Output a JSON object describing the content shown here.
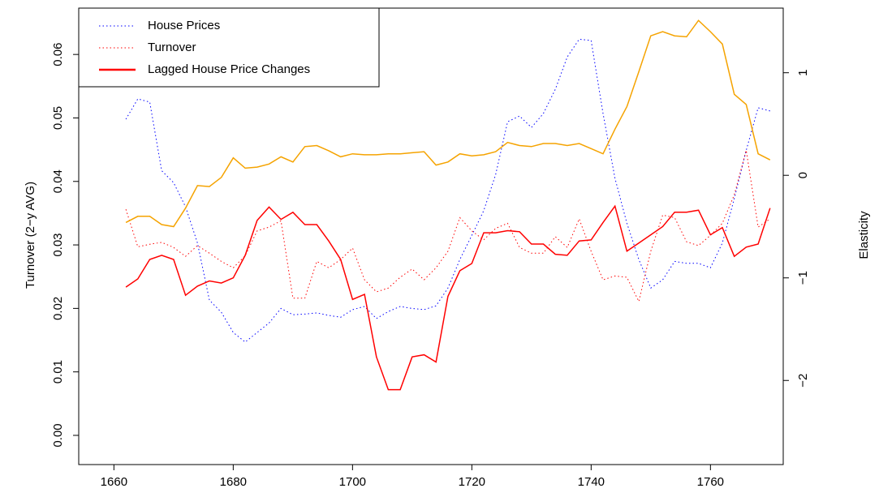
{
  "chart_data": {
    "type": "line",
    "x": [
      1662,
      1664,
      1666,
      1668,
      1670,
      1672,
      1674,
      1676,
      1678,
      1680,
      1682,
      1684,
      1686,
      1688,
      1690,
      1692,
      1694,
      1696,
      1698,
      1700,
      1702,
      1704,
      1706,
      1708,
      1710,
      1712,
      1714,
      1716,
      1718,
      1720,
      1722,
      1724,
      1726,
      1728,
      1730,
      1732,
      1734,
      1736,
      1738,
      1740,
      1742,
      1744,
      1746,
      1748,
      1750,
      1752,
      1754,
      1756,
      1758,
      1760,
      1762,
      1764,
      1766,
      1768,
      1770
    ],
    "series": [
      {
        "name": "House Prices",
        "color": "#0000ff",
        "dash": "dotted",
        "width": 1,
        "axis": "y",
        "values": [
          0.0498,
          0.053,
          0.0525,
          0.0417,
          0.0398,
          0.036,
          0.0303,
          0.0213,
          0.0194,
          0.0162,
          0.0147,
          0.0162,
          0.0177,
          0.02,
          0.019,
          0.0191,
          0.0193,
          0.0189,
          0.0186,
          0.0198,
          0.0203,
          0.0184,
          0.0195,
          0.0203,
          0.02,
          0.0198,
          0.0204,
          0.0232,
          0.0277,
          0.0315,
          0.0354,
          0.0411,
          0.0494,
          0.0503,
          0.0485,
          0.0507,
          0.0545,
          0.0596,
          0.0624,
          0.0622,
          0.0507,
          0.0405,
          0.0334,
          0.0277,
          0.0232,
          0.0245,
          0.0274,
          0.0271,
          0.0271,
          0.0264,
          0.0303,
          0.0373,
          0.0449,
          0.0516,
          0.0511
        ]
      },
      {
        "name": "Turnover",
        "color": "#ff0000",
        "dash": "dotted",
        "width": 1,
        "axis": "y",
        "values": [
          0.0356,
          0.0297,
          0.0301,
          0.0304,
          0.0296,
          0.0282,
          0.0299,
          0.0287,
          0.0274,
          0.0264,
          0.0283,
          0.0322,
          0.0328,
          0.0338,
          0.0216,
          0.0216,
          0.0274,
          0.0264,
          0.0277,
          0.0295,
          0.0245,
          0.0226,
          0.0232,
          0.0249,
          0.0262,
          0.0245,
          0.0264,
          0.029,
          0.0343,
          0.0322,
          0.0308,
          0.0326,
          0.0334,
          0.0296,
          0.0287,
          0.0287,
          0.0313,
          0.0296,
          0.0341,
          0.029,
          0.0245,
          0.0251,
          0.0249,
          0.0211,
          0.029,
          0.0347,
          0.0343,
          0.0305,
          0.0299,
          0.0315,
          0.0334,
          0.0379,
          0.0449,
          0.0328,
          0.0341
        ]
      },
      {
        "name": "Lagged House Price Changes",
        "color": "#ff0000",
        "dash": "solid",
        "width": 1.5,
        "axis": "y2",
        "values": [
          -1.09,
          -1.01,
          -0.82,
          -0.78,
          -0.82,
          -1.17,
          -1.08,
          -1.03,
          -1.05,
          -1.0,
          -0.78,
          -0.44,
          -0.31,
          -0.43,
          -0.36,
          -0.48,
          -0.48,
          -0.64,
          -0.82,
          -1.21,
          -1.16,
          -1.77,
          -2.09,
          -2.09,
          -1.77,
          -1.75,
          -1.82,
          -1.18,
          -0.93,
          -0.86,
          -0.56,
          -0.56,
          -0.54,
          -0.55,
          -0.67,
          -0.67,
          -0.77,
          -0.78,
          -0.64,
          -0.63,
          -0.46,
          -0.3,
          -0.74,
          -0.66,
          -0.58,
          -0.5,
          -0.36,
          -0.36,
          -0.34,
          -0.58,
          -0.51,
          -0.79,
          -0.7,
          -0.67,
          -0.32
        ]
      },
      {
        "color": "#f5a300",
        "dash": "solid",
        "width": 1.5,
        "axis": "y2",
        "values": [
          -0.46,
          -0.4,
          -0.4,
          -0.48,
          -0.5,
          -0.32,
          -0.1,
          -0.11,
          -0.02,
          0.17,
          0.07,
          0.08,
          0.11,
          0.18,
          0.13,
          0.28,
          0.29,
          0.24,
          0.18,
          0.21,
          0.2,
          0.2,
          0.21,
          0.21,
          0.22,
          0.23,
          0.1,
          0.13,
          0.21,
          0.19,
          0.2,
          0.23,
          0.32,
          0.29,
          0.28,
          0.31,
          0.31,
          0.29,
          0.31,
          0.26,
          0.21,
          0.45,
          0.67,
          1.01,
          1.36,
          1.4,
          1.36,
          1.35,
          1.51,
          1.4,
          1.28,
          0.79,
          0.69,
          0.21,
          0.15
        ]
      }
    ],
    "ylabel": "Turnover (2−y AVG)",
    "y2label": "Elasticity",
    "xlim": [
      1654.1,
      1772.2
    ],
    "xticks": [
      1660,
      1680,
      1700,
      1720,
      1740,
      1760
    ],
    "ylim": [
      -0.0046,
      0.0673
    ],
    "yticks": [
      {
        "value": 0,
        "label": "0.00"
      },
      {
        "value": 0.01,
        "label": "0.01"
      },
      {
        "value": 0.02,
        "label": "0.02"
      },
      {
        "value": 0.03,
        "label": "0.03"
      },
      {
        "value": 0.04,
        "label": "0.04"
      },
      {
        "value": 0.05,
        "label": "0.05"
      },
      {
        "value": 0.06,
        "label": "0.06"
      }
    ],
    "y2lim": [
      -2.82,
      1.63
    ],
    "y2ticks": [
      {
        "value": -2,
        "label": "−2"
      },
      {
        "value": -1,
        "label": "−1"
      },
      0,
      1
    ],
    "legend": "top-left"
  }
}
